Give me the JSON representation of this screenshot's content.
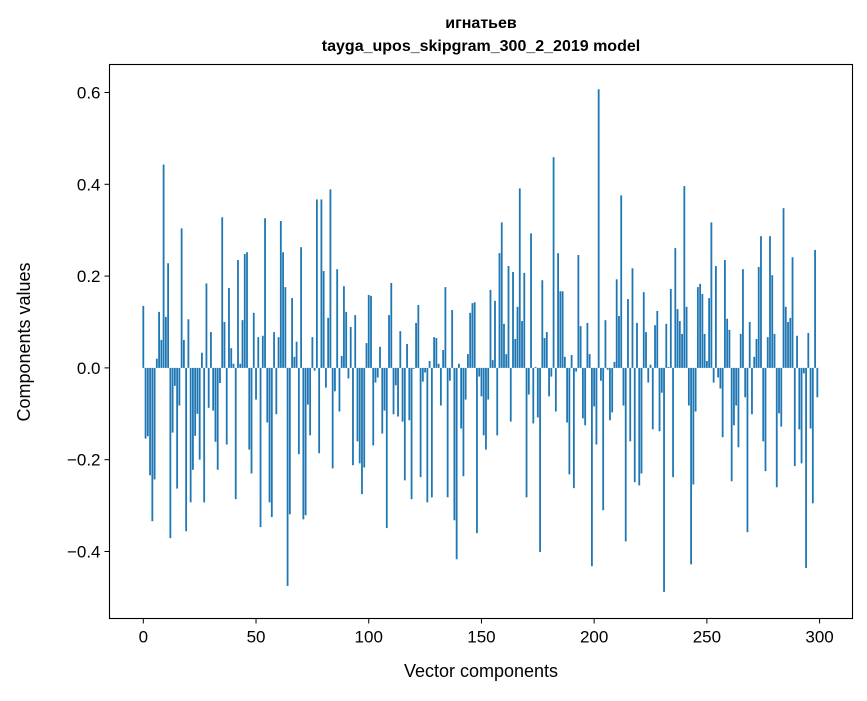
{
  "chart_data": {
    "type": "bar",
    "title": [
      "игнатьев",
      "tayga_upos_skipgram_300_2_2019 model"
    ],
    "xlabel": "Vector components",
    "ylabel": "Components values",
    "xlim": [
      -15,
      314.6
    ],
    "ylim": [
      -0.546,
      0.661
    ],
    "xticks": [
      0,
      50,
      100,
      150,
      200,
      250,
      300
    ],
    "xtick_labels": [
      "0",
      "50",
      "100",
      "150",
      "200",
      "250",
      "300"
    ],
    "yticks": [
      -0.4,
      -0.2,
      0.0,
      0.2,
      0.4,
      0.6
    ],
    "ytick_labels": [
      "−0.4",
      "−0.2",
      "0.0",
      "0.2",
      "0.4",
      "0.6"
    ],
    "grid": false,
    "bar_color": "#1f77b4",
    "values": [
      0.135,
      -0.154,
      -0.149,
      -0.234,
      -0.334,
      -0.243,
      0.02,
      0.122,
      0.061,
      0.443,
      0.111,
      0.228,
      -0.371,
      -0.141,
      -0.039,
      -0.263,
      -0.082,
      0.304,
      0.061,
      -0.356,
      0.106,
      -0.293,
      -0.222,
      -0.148,
      -0.1,
      -0.2,
      0.033,
      -0.293,
      0.184,
      -0.087,
      0.078,
      -0.093,
      -0.161,
      -0.222,
      -0.033,
      0.328,
      0.1,
      -0.167,
      0.174,
      0.043,
      0.009,
      -0.286,
      0.235,
      0.009,
      0.104,
      0.248,
      0.252,
      -0.178,
      -0.23,
      0.12,
      -0.069,
      0.067,
      -0.347,
      0.07,
      0.326,
      -0.119,
      -0.293,
      -0.325,
      0.078,
      -0.101,
      0.067,
      0.32,
      0.252,
      0.176,
      -0.475,
      -0.319,
      0.152,
      0.024,
      0.057,
      -0.188,
      0.263,
      -0.33,
      -0.321,
      -0.08,
      -0.147,
      0.067,
      -0.006,
      0.367,
      -0.186,
      0.367,
      0.211,
      -0.043,
      0.109,
      0.389,
      -0.219,
      -0.051,
      0.215,
      -0.095,
      0.026,
      0.178,
      0.122,
      -0.023,
      0.089,
      -0.212,
      0.115,
      -0.16,
      -0.208,
      -0.275,
      -0.217,
      0.054,
      0.159,
      0.157,
      -0.169,
      -0.032,
      -0.021,
      0.046,
      -0.143,
      -0.093,
      -0.349,
      0.115,
      0.185,
      -0.101,
      -0.038,
      -0.106,
      0.08,
      -0.117,
      -0.245,
      0.052,
      -0.114,
      -0.286,
      -0.002,
      0.098,
      0.137,
      -0.238,
      -0.03,
      -0.01,
      -0.293,
      0.015,
      -0.282,
      0.067,
      0.065,
      0.009,
      -0.082,
      0.039,
      0.176,
      -0.282,
      -0.028,
      0.126,
      -0.332,
      -0.417,
      0.009,
      -0.132,
      -0.236,
      -0.069,
      0.03,
      0.12,
      0.141,
      0.143,
      -0.36,
      -0.019,
      -0.062,
      -0.147,
      -0.178,
      -0.069,
      0.17,
      0.017,
      0.146,
      -0.147,
      0.25,
      0.317,
      0.096,
      0.03,
      0.222,
      -0.117,
      0.209,
      0.063,
      0.133,
      0.391,
      0.102,
      0.207,
      -0.282,
      -0.058,
      0.293,
      -0.121,
      0.002,
      -0.108,
      -0.401,
      0.191,
      0.065,
      0.078,
      -0.062,
      -0.019,
      0.459,
      -0.095,
      0.25,
      0.167,
      0.167,
      0.024,
      -0.119,
      -0.232,
      0.028,
      -0.262,
      -0.008,
      0.246,
      0.091,
      -0.11,
      -0.125,
      0.098,
      0.03,
      -0.432,
      -0.084,
      -0.167,
      0.607,
      -0.028,
      -0.31,
      0.104,
      -0.004,
      -0.114,
      -0.097,
      0.013,
      0.193,
      0.113,
      0.376,
      -0.082,
      -0.378,
      0.15,
      -0.16,
      0.217,
      -0.249,
      0.098,
      -0.256,
      -0.23,
      0.165,
      0.078,
      -0.032,
      0.007,
      -0.134,
      0.093,
      0.124,
      -0.138,
      -0.054,
      -0.488,
      0.096,
      0.002,
      0.172,
      -0.238,
      0.261,
      0.128,
      0.102,
      0.074,
      0.396,
      0.133,
      -0.082,
      -0.428,
      -0.254,
      -0.095,
      0.176,
      0.183,
      0.161,
      0.074,
      0.015,
      0.152,
      0.317,
      -0.032,
      0.222,
      -0.021,
      -0.045,
      -0.151,
      0.235,
      0.107,
      0.083,
      -0.247,
      -0.125,
      -0.082,
      -0.173,
      0.074,
      0.215,
      -0.064,
      -0.358,
      0.1,
      -0.101,
      0.024,
      0.063,
      0.22,
      0.287,
      -0.16,
      -0.225,
      0.067,
      0.287,
      0.202,
      0.074,
      -0.26,
      -0.099,
      -0.128,
      0.348,
      0.133,
      0.1,
      0.109,
      0.241,
      -0.214,
      0.07,
      -0.134,
      -0.208,
      -0.012,
      -0.436,
      0.076,
      -0.132,
      -0.295,
      0.257,
      -0.064
    ]
  }
}
